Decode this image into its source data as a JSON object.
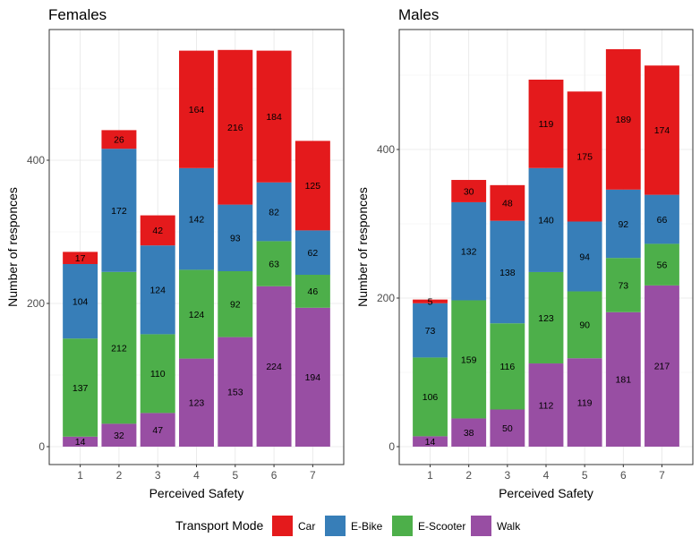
{
  "chart_data": [
    {
      "type": "bar",
      "stacked": true,
      "title": "Females",
      "xlabel": "Perceived Safety",
      "ylabel": "Number of responces",
      "categories": [
        "1",
        "2",
        "3",
        "4",
        "5",
        "6",
        "7"
      ],
      "ylim": [
        0,
        580
      ],
      "yticks": [
        0,
        200,
        400
      ],
      "grid": true,
      "series": [
        {
          "name": "Walk",
          "values": [
            14,
            32,
            47,
            123,
            153,
            224,
            194
          ]
        },
        {
          "name": "E-Scooter",
          "values": [
            137,
            212,
            110,
            124,
            92,
            63,
            46
          ]
        },
        {
          "name": "E-Bike",
          "values": [
            104,
            172,
            124,
            142,
            93,
            82,
            62
          ]
        },
        {
          "name": "Car",
          "values": [
            17,
            26,
            42,
            164,
            216,
            184,
            125
          ]
        }
      ]
    },
    {
      "type": "bar",
      "stacked": true,
      "title": "Males",
      "xlabel": "Perceived Safety",
      "ylabel": "Number of responces",
      "categories": [
        "1",
        "2",
        "3",
        "4",
        "5",
        "6",
        "7"
      ],
      "ylim": [
        0,
        560
      ],
      "yticks": [
        0,
        200,
        400
      ],
      "grid": true,
      "series": [
        {
          "name": "Walk",
          "values": [
            14,
            38,
            50,
            112,
            119,
            181,
            217
          ]
        },
        {
          "name": "E-Scooter",
          "values": [
            106,
            159,
            116,
            123,
            90,
            73,
            56
          ]
        },
        {
          "name": "E-Bike",
          "values": [
            73,
            132,
            138,
            140,
            94,
            92,
            66
          ]
        },
        {
          "name": "Car",
          "values": [
            5,
            30,
            48,
            119,
            175,
            189,
            174
          ]
        }
      ]
    }
  ],
  "legend": {
    "title": "Transport Mode",
    "position": "bottom",
    "items": [
      {
        "label": "Car",
        "color": "#E41A1C"
      },
      {
        "label": "E-Bike",
        "color": "#377EB8"
      },
      {
        "label": "E-Scooter",
        "color": "#4DAF4A"
      },
      {
        "label": "Walk",
        "color": "#984EA3"
      }
    ]
  },
  "colors": {
    "Car": "#E41A1C",
    "E-Bike": "#377EB8",
    "E-Scooter": "#4DAF4A",
    "Walk": "#984EA3"
  }
}
